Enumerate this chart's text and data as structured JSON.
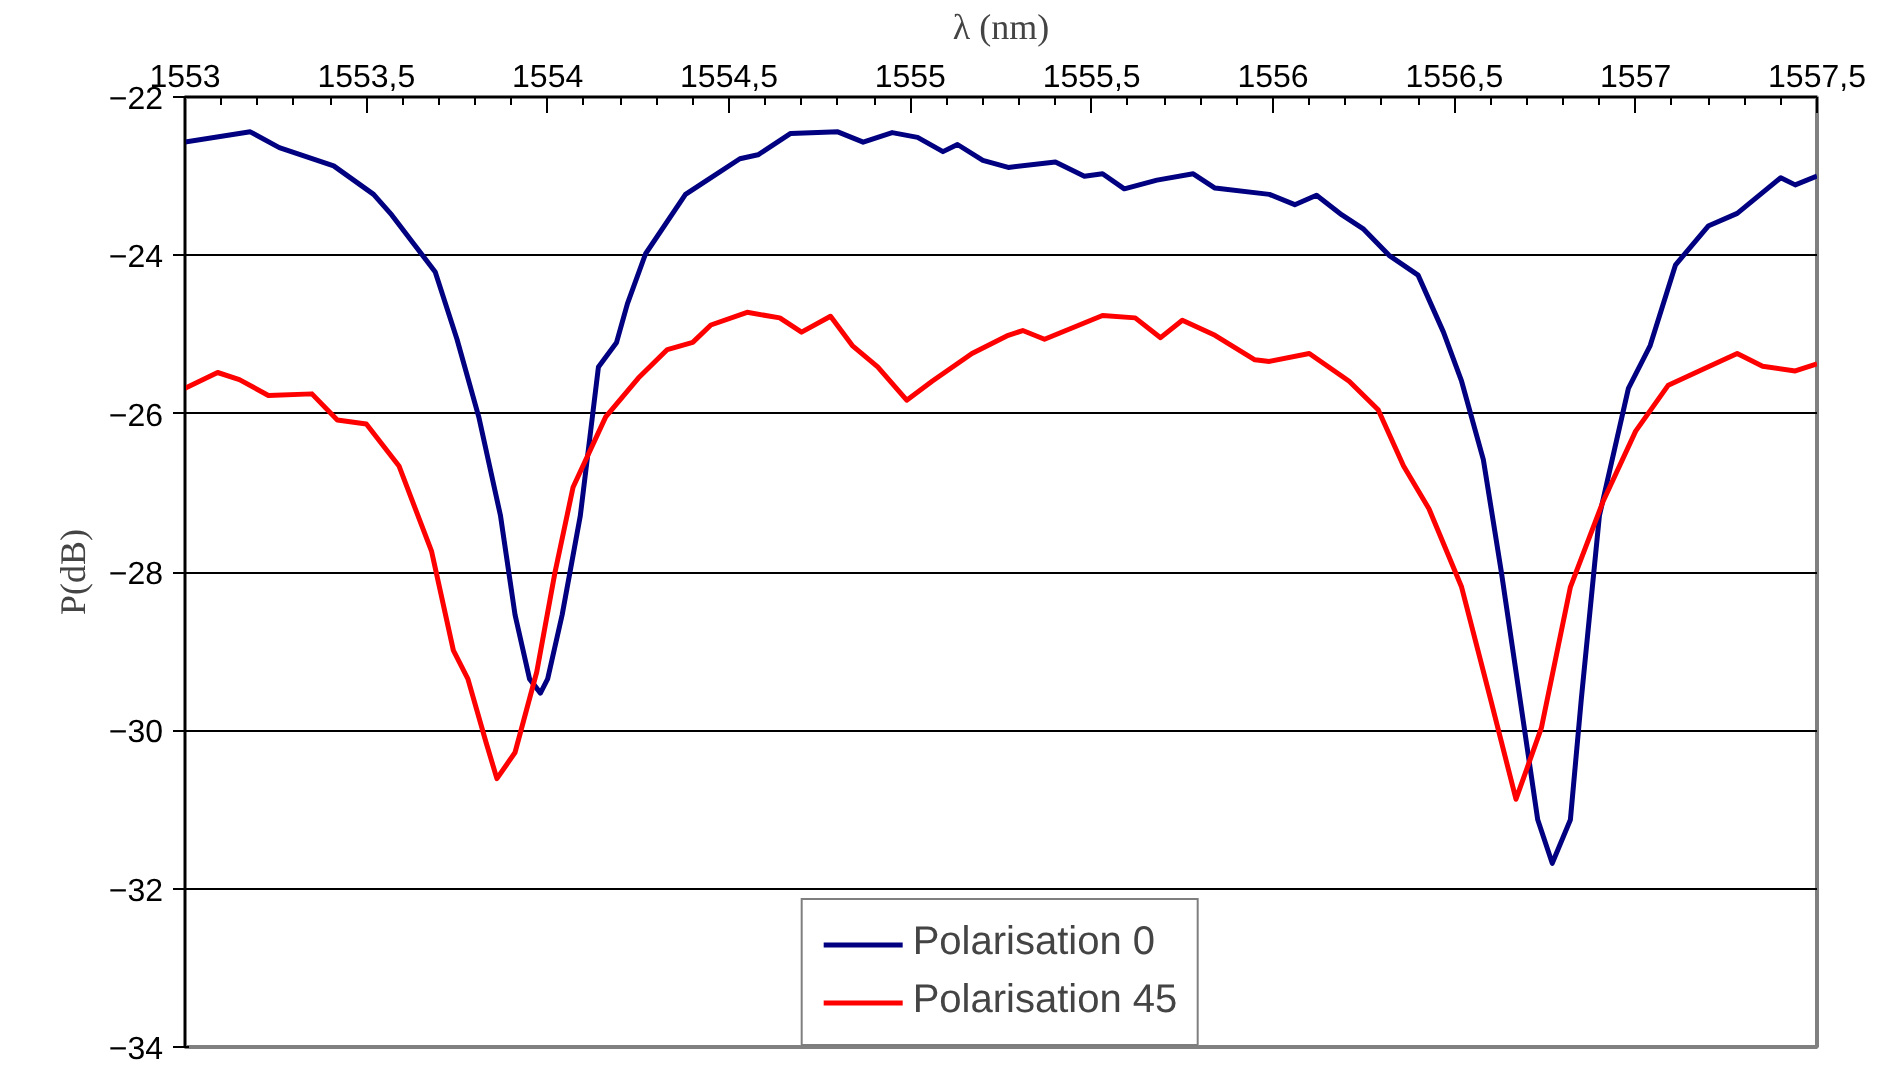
{
  "chart_data": {
    "type": "line",
    "xlabel": "λ (nm)",
    "ylabel": "P(dB)",
    "xlim": [
      1553,
      1557.5
    ],
    "ylim": [
      -34,
      -22
    ],
    "xticks": [
      1553,
      {
        "value": 1553.5,
        "label": "1553,5"
      },
      1554,
      {
        "value": 1554.5,
        "label": "1554,5"
      },
      1555,
      {
        "value": 1555.5,
        "label": "1555,5"
      },
      1556,
      {
        "value": 1556.5,
        "label": "1556,5"
      },
      1557,
      {
        "value": 1557.5,
        "label": "1557,5"
      }
    ],
    "yticks": [
      -34,
      -32,
      -30,
      -28,
      -26,
      -24,
      -22
    ],
    "grid": "y",
    "legend": "bottom",
    "marker": "none",
    "line_style": "solid",
    "series": [
      {
        "name": "Polarisation 0",
        "color": "#000080",
        "x": [
          1553.0,
          1553.18,
          1553.26,
          1553.41,
          1553.52,
          1553.57,
          1553.63,
          1553.69,
          1553.75,
          1553.81,
          1553.87,
          1553.91,
          1553.95,
          1553.98,
          1554.0,
          1554.04,
          1554.09,
          1554.14,
          1554.19,
          1554.22,
          1554.27,
          1554.38,
          1554.44,
          1554.53,
          1554.58,
          1554.67,
          1554.8,
          1554.87,
          1554.95,
          1555.02,
          1555.09,
          1555.13,
          1555.2,
          1555.27,
          1555.4,
          1555.48,
          1555.53,
          1555.59,
          1555.68,
          1555.78,
          1555.84,
          1555.99,
          1556.06,
          1556.12,
          1556.19,
          1556.25,
          1556.32,
          1556.4,
          1556.47,
          1556.52,
          1556.58,
          1556.63,
          1556.69,
          1556.73,
          1556.77,
          1556.82,
          1556.85,
          1556.9,
          1556.98,
          1557.04,
          1557.11,
          1557.2,
          1557.28,
          1557.4,
          1557.44,
          1557.5
        ],
        "values": [
          -22.57,
          -22.44,
          -22.64,
          -22.87,
          -23.23,
          -23.49,
          -23.85,
          -24.21,
          -25.06,
          -26.04,
          -27.29,
          -28.54,
          -29.35,
          -29.53,
          -29.35,
          -28.54,
          -27.29,
          -25.41,
          -25.1,
          -24.61,
          -23.98,
          -23.23,
          -23.05,
          -22.78,
          -22.73,
          -22.46,
          -22.44,
          -22.57,
          -22.45,
          -22.51,
          -22.69,
          -22.6,
          -22.8,
          -22.89,
          -22.82,
          -23.0,
          -22.97,
          -23.16,
          -23.05,
          -22.97,
          -23.15,
          -23.23,
          -23.36,
          -23.24,
          -23.49,
          -23.67,
          -24.0,
          -24.25,
          -24.97,
          -25.59,
          -26.58,
          -28.01,
          -29.88,
          -31.13,
          -31.68,
          -31.13,
          -29.61,
          -27.29,
          -25.68,
          -25.14,
          -24.12,
          -23.63,
          -23.47,
          -23.02,
          -23.11,
          -23.0
        ]
      },
      {
        "name": "Polarisation 45",
        "color": "#ff0000",
        "x": [
          1553.0,
          1553.09,
          1553.15,
          1553.23,
          1553.35,
          1553.42,
          1553.5,
          1553.59,
          1553.68,
          1553.74,
          1553.78,
          1553.83,
          1553.86,
          1553.91,
          1553.97,
          1554.02,
          1554.07,
          1554.16,
          1554.25,
          1554.33,
          1554.4,
          1554.45,
          1554.55,
          1554.64,
          1554.7,
          1554.78,
          1554.84,
          1554.91,
          1554.99,
          1555.06,
          1555.17,
          1555.27,
          1555.31,
          1555.37,
          1555.53,
          1555.62,
          1555.69,
          1555.75,
          1555.84,
          1555.95,
          1555.99,
          1556.1,
          1556.21,
          1556.29,
          1556.36,
          1556.43,
          1556.52,
          1556.6,
          1556.67,
          1556.74,
          1556.82,
          1556.91,
          1557.0,
          1557.09,
          1557.19,
          1557.28,
          1557.35,
          1557.44,
          1557.5
        ],
        "values": [
          -25.68,
          -25.48,
          -25.57,
          -25.77,
          -25.75,
          -26.08,
          -26.13,
          -26.66,
          -27.74,
          -28.99,
          -29.35,
          -30.15,
          -30.61,
          -30.28,
          -29.26,
          -28.01,
          -26.93,
          -26.04,
          -25.55,
          -25.19,
          -25.1,
          -24.88,
          -24.72,
          -24.79,
          -24.97,
          -24.77,
          -25.14,
          -25.41,
          -25.83,
          -25.59,
          -25.24,
          -25.01,
          -24.95,
          -25.06,
          -24.76,
          -24.79,
          -25.04,
          -24.82,
          -25.01,
          -25.32,
          -25.34,
          -25.24,
          -25.59,
          -25.95,
          -26.66,
          -27.2,
          -28.19,
          -29.61,
          -30.87,
          -29.97,
          -28.19,
          -27.11,
          -26.22,
          -25.64,
          -25.43,
          -25.24,
          -25.4,
          -25.46,
          -25.37
        ]
      }
    ]
  }
}
